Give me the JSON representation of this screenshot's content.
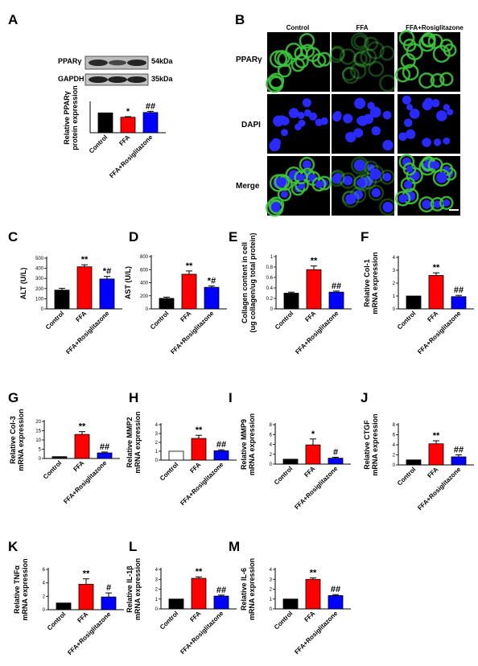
{
  "panel_a": {
    "letter": "A",
    "blot_rows": [
      {
        "label": "PPARγ",
        "size": "54kDa"
      },
      {
        "label": "GAPDH",
        "size": "35kDa"
      }
    ]
  },
  "panel_b": {
    "letter": "B",
    "columns": [
      "Control",
      "FFA",
      "FFA+Rosiglitazone"
    ],
    "rows": [
      "PPARγ",
      "DAPI",
      "Merge"
    ]
  },
  "colors": {
    "control": "#000000",
    "ffa": "#ff0000",
    "rosiglitazone": "#0000ff",
    "control_hollow_fill": "#ffffff",
    "ppar_stain": "#3ec43e",
    "dapi_stain": "#2a2aff"
  },
  "chart_data": [
    {
      "id": "A",
      "type": "bar",
      "letter": "",
      "categories": [
        "Control",
        "FFA",
        "FFA+Rosiglitazone"
      ],
      "values": [
        1.0,
        0.78,
        1.02
      ],
      "errors": [
        0,
        0.03,
        0.06
      ],
      "ylabel_lines": [
        "Relative PPARγ",
        "protein expression"
      ],
      "ylim": [
        0,
        1.5
      ],
      "yticks": [],
      "sig": [
        "",
        "*",
        "##"
      ],
      "hollow_control": false
    },
    {
      "id": "C",
      "type": "bar",
      "letter": "C",
      "categories": [
        "Control",
        "FFA",
        "FFA+Rosiglitazone"
      ],
      "values": [
        185,
        415,
        295
      ],
      "errors": [
        18,
        20,
        25
      ],
      "ylabel_lines": [
        "ALT (U/L)"
      ],
      "ylim": [
        0,
        500
      ],
      "yticks": [
        0,
        100,
        200,
        300,
        400,
        500
      ],
      "sig": [
        "",
        "**",
        "*#"
      ],
      "hollow_control": false
    },
    {
      "id": "D",
      "type": "bar",
      "letter": "D",
      "categories": [
        "Control",
        "FFA",
        "FFA+Rosiglitazone"
      ],
      "values": [
        160,
        530,
        330
      ],
      "errors": [
        20,
        50,
        20
      ],
      "ylabel_lines": [
        "AST (U/L)"
      ],
      "ylim": [
        0,
        800
      ],
      "yticks": [
        0,
        200,
        400,
        600,
        800
      ],
      "sig": [
        "",
        "**",
        "*#"
      ],
      "hollow_control": false
    },
    {
      "id": "E",
      "type": "bar",
      "letter": "E",
      "categories": [
        "Control",
        "FFA",
        "FFA+Rosiglitazone"
      ],
      "values": [
        0.3,
        0.75,
        0.32
      ],
      "errors": [
        0.02,
        0.07,
        0.02
      ],
      "ylabel_lines": [
        "Collagen content in cell",
        "(ug collagen/ug total protein)"
      ],
      "ylim": [
        0,
        1.0
      ],
      "yticks": [
        0.0,
        0.2,
        0.4,
        0.6,
        0.8,
        1.0
      ],
      "sig": [
        "",
        "**",
        "##"
      ],
      "hollow_control": false
    },
    {
      "id": "F",
      "type": "bar",
      "letter": "F",
      "categories": [
        "Control",
        "FFA",
        "FFA+Rosiglitazone"
      ],
      "values": [
        1,
        2.6,
        0.95
      ],
      "errors": [
        0,
        0.2,
        0.1
      ],
      "ylabel_lines": [
        "Relative Col-1",
        "mRNA expression"
      ],
      "ylim": [
        0,
        4
      ],
      "yticks": [
        0,
        1,
        2,
        3,
        4
      ],
      "sig": [
        "",
        "**",
        "##"
      ],
      "hollow_control": false
    },
    {
      "id": "G",
      "type": "bar",
      "letter": "G",
      "categories": [
        "Control",
        "FFA",
        "FFA+Rosiglitazone"
      ],
      "values": [
        1,
        13,
        3
      ],
      "errors": [
        0,
        1.5,
        0.5
      ],
      "ylabel_lines": [
        "Relative Col-3",
        "mRNA expression"
      ],
      "ylim": [
        0,
        20
      ],
      "yticks": [
        0,
        5,
        10,
        15,
        20
      ],
      "sig": [
        "",
        "**",
        "##"
      ],
      "hollow_control": false
    },
    {
      "id": "H",
      "type": "bar",
      "letter": "H",
      "categories": [
        "Control",
        "FFA",
        "FFA+Rosiglitazone"
      ],
      "values": [
        1,
        2.45,
        1.05
      ],
      "errors": [
        0,
        0.35,
        0.12
      ],
      "ylabel_lines": [
        "Relative MMP2",
        "mRNA expression"
      ],
      "ylim": [
        0,
        4
      ],
      "yticks": [
        0,
        1,
        2,
        3,
        4
      ],
      "sig": [
        "",
        "**",
        "##"
      ],
      "hollow_control": true
    },
    {
      "id": "I",
      "type": "bar",
      "letter": "I",
      "categories": [
        "Control",
        "FFA",
        "FFA+Rosiglitazone"
      ],
      "values": [
        1,
        3.9,
        1.2
      ],
      "errors": [
        0,
        1.2,
        0.2
      ],
      "ylabel_lines": [
        "Relative MMP9",
        "mRNA expression"
      ],
      "ylim": [
        0,
        8
      ],
      "yticks": [
        0,
        2,
        4,
        6,
        8
      ],
      "sig": [
        "",
        "*",
        "#"
      ],
      "hollow_control": false
    },
    {
      "id": "J",
      "type": "bar",
      "letter": "J",
      "categories": [
        "Control",
        "FFA",
        "FFA+Rosiglitazone"
      ],
      "values": [
        1,
        4.2,
        1.6
      ],
      "errors": [
        0,
        0.6,
        0.4
      ],
      "ylabel_lines": [
        "Relative CTGF",
        "mRNA expression"
      ],
      "ylim": [
        0,
        8
      ],
      "yticks": [
        0,
        2,
        4,
        6,
        8
      ],
      "sig": [
        "",
        "**",
        "##"
      ],
      "hollow_control": false
    },
    {
      "id": "K",
      "type": "bar",
      "letter": "K",
      "categories": [
        "Control",
        "FFA",
        "FFA+Rosiglitazone"
      ],
      "values": [
        1,
        3.8,
        1.9
      ],
      "errors": [
        0,
        0.8,
        0.6
      ],
      "ylabel_lines": [
        "Relative TNFα",
        "mRNA expression"
      ],
      "ylim": [
        0,
        6
      ],
      "yticks": [
        0,
        2,
        4,
        6
      ],
      "sig": [
        "",
        "**",
        "#"
      ],
      "hollow_control": false
    },
    {
      "id": "L",
      "type": "bar",
      "letter": "L",
      "categories": [
        "Control",
        "FFA",
        "FFA+Rosiglitazone"
      ],
      "values": [
        1,
        3.1,
        1.3
      ],
      "errors": [
        0,
        0.15,
        0.1
      ],
      "ylabel_lines": [
        "Relative IL-1β",
        "mRNA expression"
      ],
      "ylim": [
        0,
        4
      ],
      "yticks": [
        0,
        1,
        2,
        3,
        4
      ],
      "sig": [
        "",
        "**",
        "##"
      ],
      "hollow_control": false
    },
    {
      "id": "M",
      "type": "bar",
      "letter": "M",
      "categories": [
        "Control",
        "FFA",
        "FFA+Rosiglitazone"
      ],
      "values": [
        1,
        3.0,
        1.35
      ],
      "errors": [
        0,
        0.15,
        0.1
      ],
      "ylabel_lines": [
        "Relative IL-6",
        "mRNA expression"
      ],
      "ylim": [
        0,
        4
      ],
      "yticks": [
        0,
        1,
        2,
        3,
        4
      ],
      "sig": [
        "",
        "**",
        "##"
      ],
      "hollow_control": false
    }
  ]
}
